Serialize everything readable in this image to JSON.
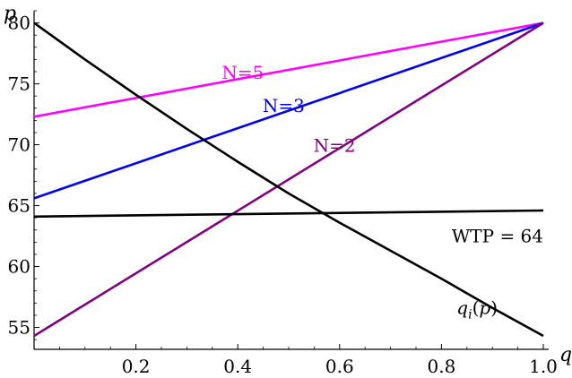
{
  "chart_data": {
    "type": "line",
    "xlabel": "q",
    "ylabel": "p",
    "xlim": [
      0,
      1.0
    ],
    "ylim": [
      53.2,
      81.0
    ],
    "x_ticks": [
      0.2,
      0.4,
      0.6,
      0.8,
      1.0
    ],
    "x_tick_labels": [
      "0.2",
      "0.4",
      "0.6",
      "0.8",
      "1.0"
    ],
    "y_ticks": [
      55,
      60,
      65,
      70,
      75,
      80
    ],
    "y_tick_labels": [
      "55",
      "60",
      "65",
      "70",
      "75",
      "80"
    ],
    "grid": false,
    "series": [
      {
        "name": "N=5",
        "color": "#ff00ff",
        "x": [
          0,
          1.0
        ],
        "y": [
          72.3,
          80.0
        ]
      },
      {
        "name": "N=3",
        "color": "#0000ee",
        "x": [
          0,
          1.0
        ],
        "y": [
          65.6,
          80.0
        ]
      },
      {
        "name": "N=2",
        "color": "#800080",
        "x": [
          0,
          1.0
        ],
        "y": [
          54.3,
          80.0
        ]
      },
      {
        "name": "WTP = 64",
        "color": "#000000",
        "x": [
          0,
          1.0
        ],
        "y": [
          64.1,
          64.6
        ]
      },
      {
        "name": "q_i(p)",
        "color": "#000000",
        "x": [
          0,
          0.1,
          0.2,
          0.3,
          0.4,
          0.5,
          0.6,
          0.7,
          0.8,
          0.9,
          1.0
        ],
        "y": [
          80.0,
          77.0,
          74.1,
          71.3,
          68.6,
          66.0,
          63.6,
          61.3,
          59.0,
          56.6,
          54.3
        ]
      }
    ]
  }
}
